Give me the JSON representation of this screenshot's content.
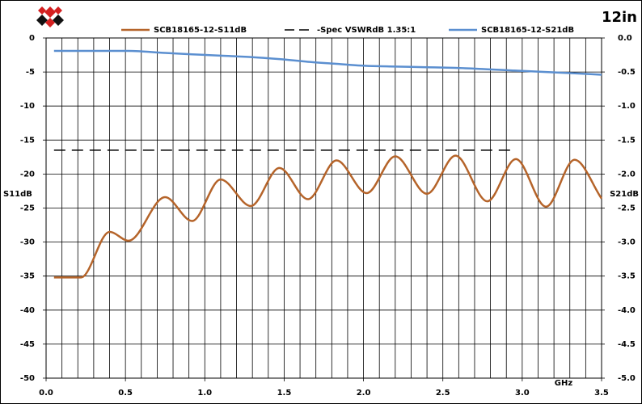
{
  "chart_data": {
    "type": "line",
    "title": "12in",
    "xlabel": "GHz",
    "ylabel": "S11dB",
    "y2label": "S21dB",
    "x": [
      0.05,
      0.22,
      0.4,
      0.52,
      0.75,
      0.92,
      1.1,
      1.29,
      1.47,
      1.65,
      1.83,
      2.02,
      2.2,
      2.4,
      2.58,
      2.78,
      2.96,
      3.15,
      3.33,
      3.5
    ],
    "series": [
      {
        "name": "SCB18165-12-S11dB",
        "color": "#b5642a",
        "style": "solid",
        "values": [
          -35.2,
          -35.2,
          -28.5,
          -29.8,
          -23.4,
          -26.9,
          -20.8,
          -24.7,
          -19.1,
          -23.7,
          -18,
          -22.8,
          -17.4,
          -22.9,
          -17.3,
          -24,
          -17.8,
          -24.8,
          -17.9,
          -23.6
        ]
      },
      {
        "name": "-Spec VSWRdB 1.35:1",
        "color": "#000000",
        "style": "dashed",
        "values": [
          -16.5,
          -16.5,
          -16.5,
          -16.5,
          -16.5,
          -16.5,
          -16.5,
          -16.5,
          -16.5,
          -16.5,
          -16.5,
          -16.5,
          -16.5,
          -16.5,
          -16.5,
          -16.5,
          -16.5,
          null,
          null,
          null
        ]
      },
      {
        "name": "SCB18165-12-S21dB",
        "color": "#5b8fd0",
        "style": "solid",
        "axis": "y2",
        "values": [
          -0.19,
          -0.19,
          -0.19,
          -0.19,
          -0.22,
          -0.24,
          -0.26,
          -0.28,
          -0.31,
          -0.35,
          -0.38,
          -0.41,
          -0.42,
          -0.43,
          -0.44,
          -0.46,
          -0.48,
          -0.5,
          -0.52,
          -0.54
        ]
      }
    ],
    "xlim": [
      0,
      3.5
    ],
    "xticks": [
      {
        "value": 0,
        "label": "0.0"
      },
      0.5,
      {
        "value": 1,
        "label": "1.0"
      },
      1.5,
      {
        "value": 2,
        "label": "2.0"
      },
      2.5,
      {
        "value": 3,
        "label": "3.0"
      },
      3.5
    ],
    "x_minor_grid": [
      0.1,
      0.2,
      0.3,
      0.4,
      0.6,
      0.7,
      0.8,
      0.9,
      1.1,
      1.2,
      1.3,
      1.4,
      1.6,
      1.7,
      1.8,
      1.9,
      2.1,
      2.2,
      2.3,
      2.4,
      2.6,
      2.7,
      2.8,
      2.9,
      3.1,
      3.2,
      3.3,
      3.4
    ],
    "ylim": [
      -50,
      0
    ],
    "yticks": [
      -50,
      -45,
      -40,
      -35,
      -30,
      -25,
      -20,
      -15,
      -10,
      -5,
      0
    ],
    "y2lim": [
      -5,
      0
    ],
    "y2ticks": [
      {
        "value": -5,
        "label": "-5.0"
      },
      -4.5,
      {
        "value": -4,
        "label": "-4.0"
      },
      -3.5,
      {
        "value": -3,
        "label": "-3.0"
      },
      -2.5,
      {
        "value": -2,
        "label": "-2.0"
      },
      -1.5,
      {
        "value": -1,
        "label": "-1.0"
      },
      -0.5,
      {
        "value": 0,
        "label": "0.0"
      }
    ],
    "grid": true,
    "legend": "top"
  }
}
